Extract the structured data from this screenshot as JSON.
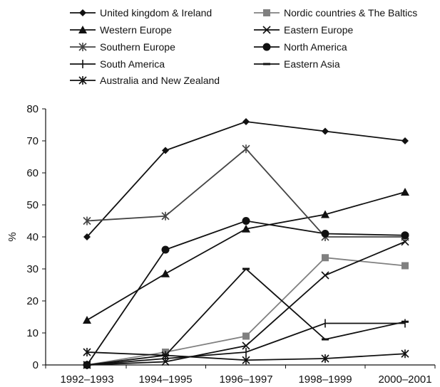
{
  "chart_data": {
    "type": "line",
    "title": "",
    "xlabel": "",
    "ylabel": "%",
    "ylim": [
      0,
      80
    ],
    "yticks": [
      0,
      10,
      20,
      30,
      40,
      50,
      60,
      70,
      80
    ],
    "categories": [
      "1992–1993",
      "1994–1995",
      "1996–1997",
      "1998–1999",
      "2000–2001"
    ],
    "grid": false,
    "legend_position": "top",
    "series": [
      {
        "name": "United kingdom & Ireland",
        "marker": "diamond",
        "color": "#111111",
        "values": [
          40,
          67,
          76,
          73,
          70
        ]
      },
      {
        "name": "Nordic countries & The Baltics",
        "marker": "square",
        "color": "#808080",
        "values": [
          0,
          4,
          9,
          33.5,
          31
        ]
      },
      {
        "name": "Western Europe",
        "marker": "triangle",
        "color": "#111111",
        "values": [
          14,
          28.5,
          42.5,
          47,
          54
        ]
      },
      {
        "name": "Eastern Europe",
        "marker": "x",
        "color": "#111111",
        "values": [
          0,
          1,
          6,
          28,
          38.5
        ]
      },
      {
        "name": "Southern Europe",
        "marker": "star",
        "color": "#444444",
        "values": [
          45,
          46.5,
          67.5,
          40,
          40
        ]
      },
      {
        "name": "North America",
        "marker": "circle",
        "color": "#111111",
        "values": [
          0,
          36,
          45,
          41,
          40.5
        ]
      },
      {
        "name": "South America",
        "marker": "plus",
        "color": "#111111",
        "values": [
          0,
          2,
          4,
          13,
          13
        ]
      },
      {
        "name": "Eastern Asia",
        "marker": "dash",
        "color": "#111111",
        "values": [
          0,
          3,
          30,
          8,
          13.5
        ]
      },
      {
        "name": "Australia and New Zealand",
        "marker": "star",
        "color": "#111111",
        "values": [
          4,
          3,
          1.5,
          2,
          3.5
        ]
      }
    ]
  }
}
